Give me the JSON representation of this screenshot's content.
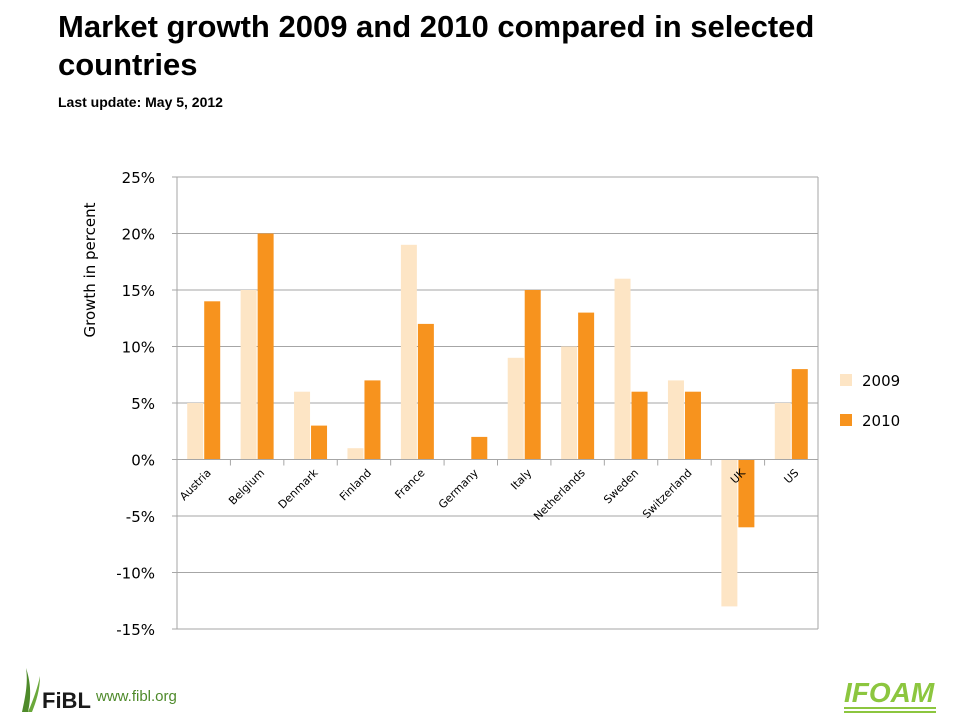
{
  "header": {
    "title": "Market growth 2009 and 2010 compared in selected countries",
    "subtitle": "Last update: May 5, 2012"
  },
  "footer": {
    "url": "www.fibl.org",
    "left_logo_icon": "fibl-logo",
    "right_logo_icon": "ifoam-logo",
    "right_logo_text": "IFOAM"
  },
  "colors": {
    "series_2009": "#fde5c5",
    "series_2010": "#f7931e",
    "grid": "#a6a6a6",
    "text": "#000000"
  },
  "chart_data": {
    "type": "bar",
    "categories": [
      "Austria",
      "Belgium",
      "Denmark",
      "Finland",
      "France",
      "Germany",
      "Italy",
      "Netherlands",
      "Sweden",
      "Switzerland",
      "UK",
      "US"
    ],
    "series": [
      {
        "name": "2009",
        "values": [
          5,
          15,
          6,
          1,
          19,
          0,
          9,
          10,
          16,
          7,
          -13,
          5
        ]
      },
      {
        "name": "2010",
        "values": [
          14,
          20,
          3,
          7,
          12,
          2,
          15,
          13,
          6,
          6,
          -6,
          8
        ]
      }
    ],
    "ylabel": "Growth in percent",
    "xlabel": "",
    "ylim": [
      -15,
      25
    ],
    "yticks": [
      "-15%",
      "-10%",
      "-5%",
      "0%",
      "5%",
      "10%",
      "15%",
      "20%",
      "25%"
    ],
    "ytick_values": [
      -15,
      -10,
      -5,
      0,
      5,
      10,
      15,
      20,
      25
    ],
    "grid": true,
    "legend": {
      "placement": "right",
      "entries": [
        "2009",
        "2010"
      ]
    }
  }
}
